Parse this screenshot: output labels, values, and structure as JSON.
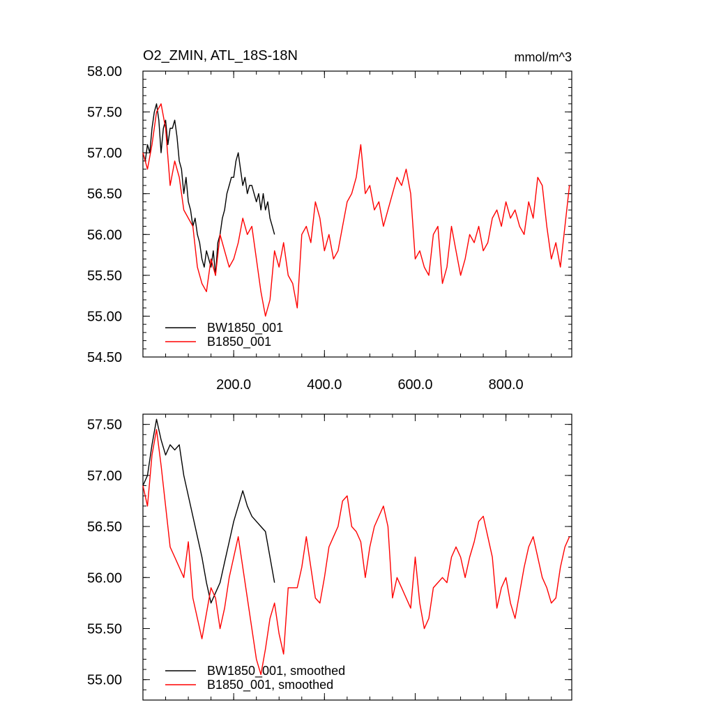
{
  "chart_data": [
    {
      "type": "line",
      "title": "O2_ZMIN, ATL_18S-18N",
      "units": "mmol/m^3",
      "xlabel": "",
      "ylabel": "",
      "xlim": [
        0,
        945
      ],
      "ylim": [
        54.5,
        58.0
      ],
      "x_ticks": [
        200,
        400,
        600,
        800
      ],
      "x_tick_labels": [
        "200.0",
        "400.0",
        "600.0",
        "800.0"
      ],
      "y_ticks": [
        54.5,
        55.0,
        55.5,
        56.0,
        56.5,
        57.0,
        57.5,
        58.0
      ],
      "y_tick_labels": [
        "54.50",
        "55.00",
        "55.50",
        "56.00",
        "56.50",
        "57.00",
        "57.50",
        "58.00"
      ],
      "grid": false,
      "legend_position": "bottom-left",
      "series": [
        {
          "name": "BW1850_001",
          "color": "#000000",
          "x": [
            0,
            5,
            10,
            15,
            20,
            25,
            30,
            35,
            40,
            45,
            50,
            55,
            60,
            65,
            70,
            75,
            80,
            85,
            90,
            95,
            100,
            105,
            110,
            115,
            120,
            125,
            130,
            135,
            140,
            145,
            150,
            155,
            160,
            165,
            170,
            175,
            180,
            185,
            190,
            195,
            200,
            205,
            210,
            215,
            220,
            225,
            230,
            235,
            240,
            245,
            250,
            255,
            260,
            265,
            270,
            275,
            280,
            285,
            290
          ],
          "y": [
            57.0,
            56.9,
            57.1,
            57.0,
            57.3,
            57.5,
            57.6,
            57.4,
            57.0,
            57.3,
            57.4,
            57.1,
            57.3,
            57.3,
            57.4,
            57.2,
            56.9,
            56.8,
            56.5,
            56.7,
            56.4,
            56.3,
            56.1,
            56.2,
            56.0,
            55.9,
            55.7,
            55.6,
            55.8,
            55.7,
            55.6,
            55.8,
            55.5,
            55.9,
            56.0,
            56.2,
            56.3,
            56.5,
            56.6,
            56.7,
            56.7,
            56.9,
            57.0,
            56.8,
            56.6,
            56.7,
            56.5,
            56.6,
            56.6,
            56.5,
            56.4,
            56.5,
            56.3,
            56.5,
            56.3,
            56.4,
            56.2,
            56.1,
            56.0
          ]
        },
        {
          "name": "B1850_001",
          "color": "#ff0000",
          "x": [
            0,
            10,
            20,
            30,
            40,
            50,
            60,
            70,
            80,
            90,
            100,
            110,
            120,
            130,
            140,
            150,
            160,
            170,
            180,
            190,
            200,
            210,
            220,
            230,
            240,
            250,
            260,
            270,
            280,
            290,
            300,
            310,
            320,
            330,
            340,
            350,
            360,
            370,
            380,
            390,
            400,
            410,
            420,
            430,
            440,
            450,
            460,
            470,
            480,
            490,
            500,
            510,
            520,
            530,
            540,
            550,
            560,
            570,
            580,
            590,
            600,
            610,
            620,
            630,
            640,
            650,
            660,
            670,
            680,
            690,
            700,
            710,
            720,
            730,
            740,
            750,
            760,
            770,
            780,
            790,
            800,
            810,
            820,
            830,
            840,
            850,
            860,
            870,
            880,
            890,
            900,
            910,
            920,
            930,
            940
          ],
          "y": [
            57.0,
            56.8,
            57.1,
            57.5,
            57.6,
            57.3,
            56.6,
            56.9,
            56.7,
            56.3,
            56.2,
            56.1,
            55.6,
            55.4,
            55.3,
            55.7,
            55.5,
            56.0,
            55.8,
            55.6,
            55.7,
            55.9,
            56.2,
            56.0,
            56.1,
            55.7,
            55.3,
            55.0,
            55.2,
            55.8,
            55.6,
            55.9,
            55.5,
            55.4,
            55.1,
            56.0,
            56.1,
            55.9,
            56.4,
            56.2,
            55.8,
            56.0,
            55.7,
            55.8,
            56.1,
            56.4,
            56.5,
            56.7,
            57.1,
            56.5,
            56.6,
            56.3,
            56.4,
            56.1,
            56.3,
            56.5,
            56.7,
            56.6,
            56.8,
            56.5,
            55.7,
            55.8,
            55.6,
            55.5,
            56.0,
            56.1,
            55.4,
            55.6,
            56.1,
            55.8,
            55.5,
            55.7,
            56.0,
            55.9,
            56.1,
            55.8,
            55.9,
            56.2,
            56.3,
            56.1,
            56.4,
            56.2,
            56.3,
            56.1,
            56.0,
            56.4,
            56.2,
            56.7,
            56.6,
            56.1,
            55.7,
            55.9,
            55.6,
            56.1,
            56.6
          ]
        }
      ]
    },
    {
      "type": "line",
      "title": "",
      "xlabel": "",
      "ylabel": "",
      "xlim": [
        0,
        945
      ],
      "ylim": [
        54.8,
        57.6
      ],
      "x_ticks": [
        200,
        400,
        600,
        800
      ],
      "y_ticks": [
        55.0,
        55.5,
        56.0,
        56.5,
        57.0,
        57.5
      ],
      "y_tick_labels": [
        "55.00",
        "55.50",
        "56.00",
        "56.50",
        "57.00",
        "57.50"
      ],
      "grid": false,
      "legend_position": "bottom-left",
      "series": [
        {
          "name": "BW1850_001, smoothed",
          "color": "#000000",
          "x": [
            0,
            10,
            20,
            30,
            40,
            50,
            60,
            70,
            80,
            90,
            100,
            110,
            120,
            130,
            140,
            150,
            160,
            170,
            180,
            190,
            200,
            210,
            220,
            230,
            240,
            250,
            260,
            270,
            280,
            290
          ],
          "y": [
            56.9,
            57.0,
            57.3,
            57.55,
            57.35,
            57.2,
            57.3,
            57.25,
            57.3,
            57.0,
            56.8,
            56.6,
            56.4,
            56.2,
            55.95,
            55.75,
            55.85,
            55.95,
            56.15,
            56.35,
            56.55,
            56.7,
            56.85,
            56.7,
            56.6,
            56.55,
            56.5,
            56.45,
            56.2,
            55.95
          ]
        },
        {
          "name": "B1850_001, smoothed",
          "color": "#ff0000",
          "x": [
            0,
            10,
            20,
            30,
            40,
            50,
            60,
            70,
            80,
            90,
            100,
            110,
            120,
            130,
            140,
            150,
            160,
            170,
            180,
            190,
            200,
            210,
            220,
            230,
            240,
            250,
            260,
            270,
            280,
            290,
            300,
            310,
            320,
            330,
            340,
            350,
            360,
            370,
            380,
            390,
            400,
            410,
            420,
            430,
            440,
            450,
            460,
            470,
            480,
            490,
            500,
            510,
            520,
            530,
            540,
            550,
            560,
            570,
            580,
            590,
            600,
            610,
            620,
            630,
            640,
            650,
            660,
            670,
            680,
            690,
            700,
            710,
            720,
            730,
            740,
            750,
            760,
            770,
            780,
            790,
            800,
            810,
            820,
            830,
            840,
            850,
            860,
            870,
            880,
            890,
            900,
            910,
            920,
            930,
            940
          ],
          "y": [
            56.9,
            56.7,
            57.2,
            57.45,
            57.1,
            56.7,
            56.3,
            56.2,
            56.1,
            56.0,
            56.35,
            55.8,
            55.6,
            55.4,
            55.65,
            55.9,
            55.8,
            55.5,
            55.7,
            56.0,
            56.2,
            56.4,
            56.1,
            55.8,
            55.5,
            55.2,
            55.05,
            55.3,
            55.6,
            55.75,
            55.45,
            55.25,
            55.9,
            55.9,
            55.9,
            56.1,
            56.4,
            56.1,
            55.8,
            55.75,
            56.0,
            56.3,
            56.4,
            56.5,
            56.75,
            56.8,
            56.5,
            56.45,
            56.35,
            56.0,
            56.3,
            56.5,
            56.6,
            56.7,
            56.5,
            55.8,
            56.0,
            55.9,
            55.8,
            55.7,
            56.2,
            55.75,
            55.5,
            55.6,
            55.9,
            55.95,
            56.0,
            55.95,
            56.2,
            56.3,
            56.2,
            56.0,
            56.2,
            56.35,
            56.55,
            56.6,
            56.4,
            56.2,
            55.7,
            55.9,
            56.0,
            55.75,
            55.6,
            55.85,
            56.1,
            56.3,
            56.4,
            56.2,
            56.0,
            55.9,
            55.75,
            55.8,
            56.1,
            56.3,
            56.4
          ]
        }
      ]
    }
  ]
}
